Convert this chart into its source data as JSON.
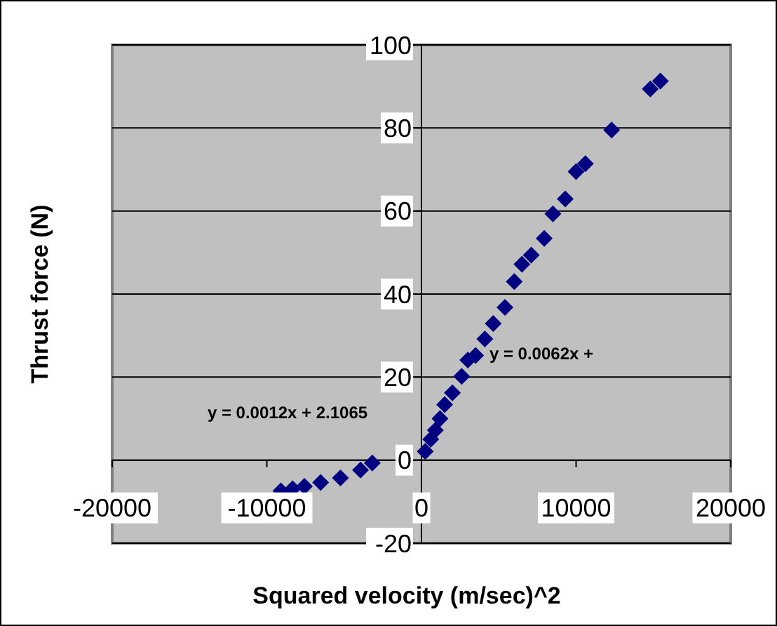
{
  "chart_data": {
    "type": "scatter",
    "xlabel": "Squared velocity (m/sec)^2",
    "ylabel": "Thrust force (N)",
    "xlim": [
      -20000,
      20000
    ],
    "xticks": [
      -20000,
      -10000,
      0,
      10000,
      20000
    ],
    "ylim": [
      -20,
      100
    ],
    "yticks": [
      -20,
      0,
      20,
      40,
      60,
      80,
      100
    ],
    "grid": "y",
    "marker": "diamond",
    "annotations": [
      "y = 0.0012x + 2.1065",
      "y = 0.0062x +"
    ],
    "series": [
      {
        "color": "#000080",
        "x": [
          -9090,
          -8330,
          -7570,
          -6520,
          -5240,
          -3940,
          -3180,
          245,
          600,
          900,
          1200,
          1500,
          2000,
          2600,
          3000,
          3500,
          4100,
          4640,
          5400,
          6000,
          6500,
          7100,
          7940,
          8500,
          9300,
          10000,
          10600,
          12300,
          14800,
          15450
        ],
        "values": [
          -7.4,
          -6.9,
          -6.3,
          -5.4,
          -4.3,
          -2.4,
          -0.7,
          2.1,
          5,
          7.2,
          10,
          13.4,
          16.2,
          20.2,
          24.1,
          25.2,
          29.2,
          32.9,
          36.8,
          43,
          47.2,
          49.4,
          53.4,
          59.3,
          62.9,
          69.5,
          71.4,
          79.5,
          89.4,
          91.3
        ]
      }
    ]
  }
}
